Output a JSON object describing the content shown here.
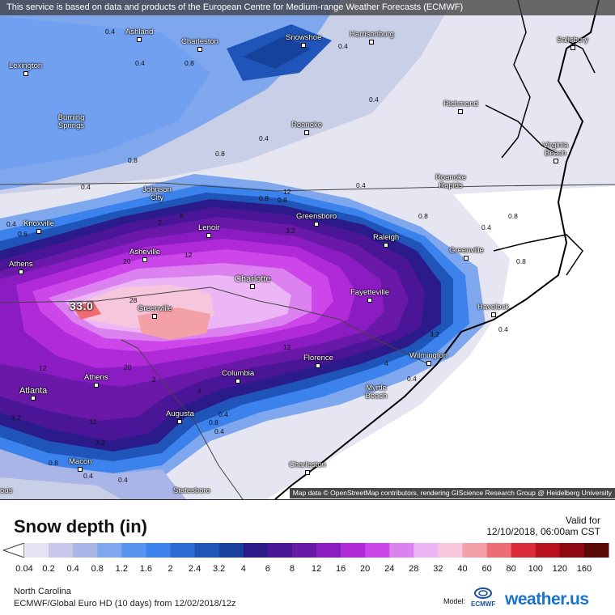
{
  "header": {
    "disclaimer": "This service is based on data and products of the European Centre for Medium-range Weather Forecasts (ECMWF)"
  },
  "map": {
    "attribution": "Map data © OpenStreetMap contributors, rendering GIScience Research Group @ Heidelberg University",
    "max_value_label": "33.0",
    "cities": [
      "Ashland",
      "Charleston",
      "Snowshoe",
      "Harrisonburg",
      "Salisbury",
      "Lexington",
      "Burning Springs",
      "Richmond",
      "Roanoke",
      "Virginia Beach",
      "Johnson City",
      "Roanoke Rapids",
      "Greensboro",
      "Knoxville",
      "Lenoir",
      "Raleigh",
      "Athens",
      "Asheville",
      "Greenville",
      "Charlotte",
      "Fayetteville",
      "Greenville",
      "Havelock",
      "Florence",
      "Wilmington",
      "Athens",
      "Columbia",
      "Atlanta",
      "Myrtle Beach",
      "Augusta",
      "Macon",
      "Charleston",
      "Statesboro",
      "ous"
    ],
    "contour_labels": [
      "0.4",
      "0.4",
      "0.8",
      "0.4",
      "0.4",
      "0.4",
      "0.8",
      "0.8",
      "0.4",
      "0.8",
      "0.4",
      "0.8",
      "0.8",
      "0.4",
      "0.8",
      "0.4",
      "0.6",
      "0.4",
      "2",
      "8",
      "12",
      "20",
      "28",
      "12",
      "3.2",
      "4",
      "3.2",
      "12",
      "20",
      "2",
      "0.4",
      "0.4",
      "0.8",
      "0.4",
      "3.2",
      "12",
      "0.8",
      "0.4",
      "4",
      "0.4",
      "12",
      "3.2",
      "0.8"
    ]
  },
  "legend": {
    "title": "Snow depth (in)",
    "valid_label": "Valid for",
    "valid_time": "12/10/2018, 06:00am CST",
    "ticks": [
      "0.04",
      "0.2",
      "0.4",
      "0.8",
      "1.2",
      "1.6",
      "2",
      "2.4",
      "3.2",
      "4",
      "6",
      "8",
      "12",
      "16",
      "20",
      "24",
      "28",
      "32",
      "40",
      "60",
      "80",
      "100",
      "120",
      "160"
    ],
    "colors": [
      "#e4e4f4",
      "#c7c7ea",
      "#a9b5e6",
      "#7fa7ee",
      "#5794f0",
      "#3b82ec",
      "#2a6bd6",
      "#1f55b8",
      "#16429b",
      "#2a1a8a",
      "#4a1596",
      "#6a18a8",
      "#8a1cc2",
      "#b02ad8",
      "#cc46ea",
      "#dc82f0",
      "#ecb6f6",
      "#f6c6dc",
      "#f4a0a8",
      "#ee6d74",
      "#dc2c3c",
      "#b8101c",
      "#8e0810",
      "#5a0808"
    ]
  },
  "footer": {
    "region": "North Carolina",
    "model_run": "ECMWF/Global Euro HD (10 days) from 12/02/2018/12z",
    "model_label": "Model:",
    "model_logo": "ECMWF",
    "brand": "weather.us"
  }
}
